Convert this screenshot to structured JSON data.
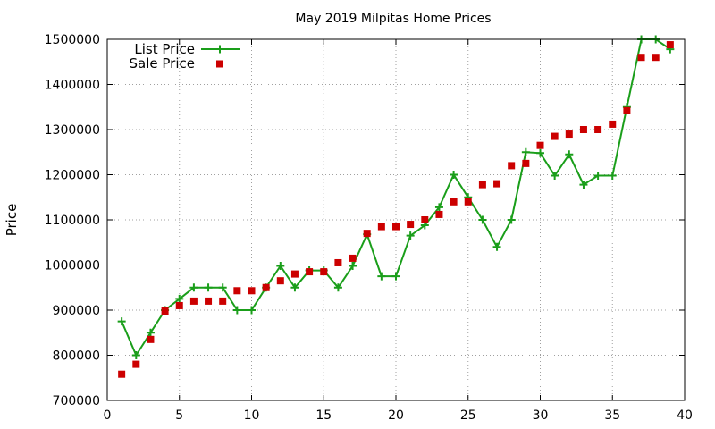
{
  "chart_data": {
    "type": "line",
    "title": "May 2019 Milpitas Home Prices",
    "xlabel": "",
    "ylabel": "Price",
    "xlim": [
      0,
      40
    ],
    "ylim": [
      700000,
      1500000
    ],
    "x_ticks": [
      0,
      5,
      10,
      15,
      20,
      25,
      30,
      35,
      40
    ],
    "y_ticks": [
      700000,
      800000,
      900000,
      1000000,
      1100000,
      1200000,
      1300000,
      1400000,
      1500000
    ],
    "x_tick_labels": [
      "0",
      "5",
      "10",
      "15",
      "20",
      "25",
      "30",
      "35",
      "40"
    ],
    "y_tick_labels": [
      "700000",
      "800000",
      "900000",
      "1000000",
      "1100000",
      "1200000",
      "1300000",
      "1400000",
      "1500000"
    ],
    "grid": true,
    "legend": "top-left",
    "x": [
      1,
      2,
      3,
      4,
      5,
      6,
      7,
      8,
      9,
      10,
      11,
      12,
      13,
      14,
      15,
      16,
      17,
      18,
      19,
      20,
      21,
      22,
      23,
      24,
      25,
      26,
      27,
      28,
      29,
      30,
      31,
      32,
      33,
      34,
      35,
      36,
      37,
      38,
      39
    ],
    "series": [
      {
        "name": "List Price",
        "style": "line+cross",
        "color": "#1a9e1a",
        "values": [
          875000,
          800000,
          850000,
          900000,
          925000,
          950000,
          950000,
          950000,
          900000,
          900000,
          950000,
          998000,
          950000,
          988000,
          988000,
          950000,
          998000,
          1068000,
          975000,
          975000,
          1065000,
          1088000,
          1128000,
          1200000,
          1150000,
          1100000,
          1040000,
          1100000,
          1250000,
          1248000,
          1198000,
          1245000,
          1178000,
          1198000,
          1198000,
          1350000,
          1500000,
          1500000,
          1478000
        ]
      },
      {
        "name": "Sale Price",
        "style": "square",
        "color": "#cc0000",
        "values": [
          758000,
          780000,
          835000,
          898000,
          910000,
          920000,
          920000,
          920000,
          943000,
          943000,
          950000,
          965000,
          980000,
          985000,
          985000,
          1005000,
          1015000,
          1070000,
          1085000,
          1085000,
          1090000,
          1100000,
          1112000,
          1140000,
          1140000,
          1178000,
          1180000,
          1220000,
          1225000,
          1265000,
          1285000,
          1290000,
          1300000,
          1300000,
          1312000,
          1342000,
          1460000,
          1460000,
          1488000
        ]
      }
    ]
  }
}
